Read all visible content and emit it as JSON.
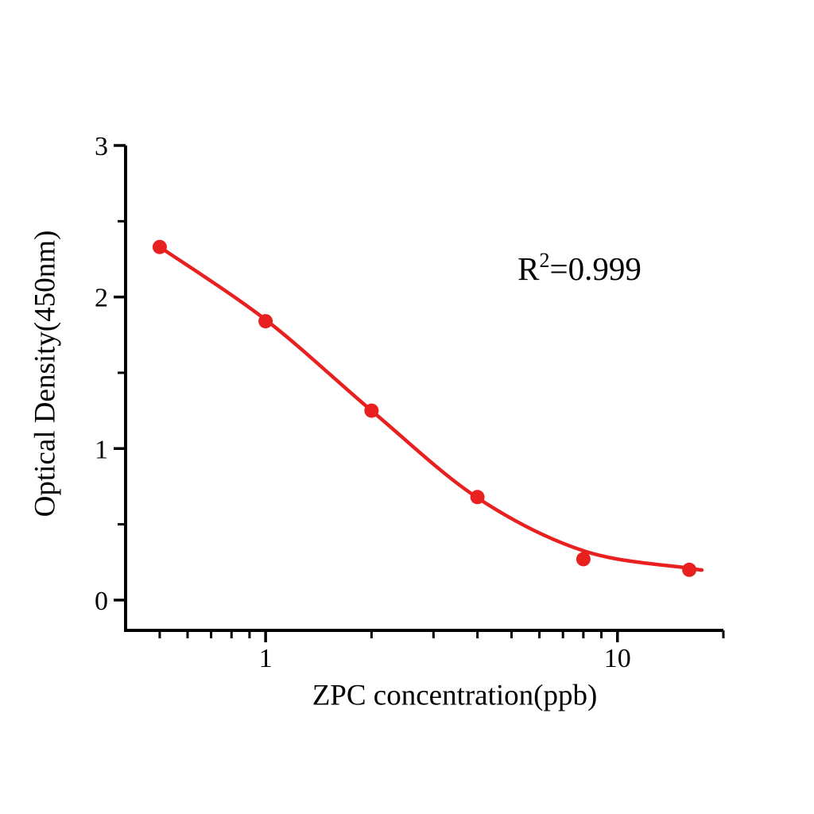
{
  "page": {
    "background": "#ffffff",
    "text_color": "#000000"
  },
  "chart_data": {
    "type": "scatter",
    "title": "",
    "xlabel": "ZPC concentration(ppb)",
    "ylabel": "Optical Density(450nm)",
    "annotation": {
      "base": "R",
      "sup": "2",
      "rest": "=0.999"
    },
    "x_scale": "log",
    "y_scale": "linear",
    "xlim": [
      0.4,
      20
    ],
    "ylim": [
      -0.2,
      3
    ],
    "grid": false,
    "legend": "none",
    "accent_color": "#e8201f",
    "axis_color": "#000000",
    "series": [
      {
        "name": "standard-points",
        "type": "scatter",
        "marker": "circle",
        "color": "#e8201f",
        "x": [
          0.5,
          1,
          2,
          4,
          8,
          16
        ],
        "y": [
          2.33,
          1.84,
          1.25,
          0.68,
          0.27,
          0.2
        ]
      },
      {
        "name": "4pl-fit-curve",
        "type": "line",
        "color": "#e8201f",
        "x": [
          0.5,
          1,
          2,
          4,
          8,
          16,
          17.3
        ],
        "y": [
          2.33,
          1.85,
          1.25,
          0.675,
          0.325,
          0.21,
          0.2
        ]
      }
    ],
    "xticks": {
      "major": [
        1,
        10
      ],
      "labels": [
        "1",
        "10"
      ],
      "minor": [
        0.5,
        0.6,
        0.7,
        0.8,
        0.9,
        2,
        3,
        4,
        5,
        6,
        7,
        8,
        9,
        20
      ]
    },
    "yticks": {
      "major": [
        0,
        1,
        2,
        3
      ],
      "labels": [
        "0",
        "1",
        "2",
        "3"
      ],
      "minor": [
        0.5,
        1.5,
        2.5
      ]
    }
  }
}
